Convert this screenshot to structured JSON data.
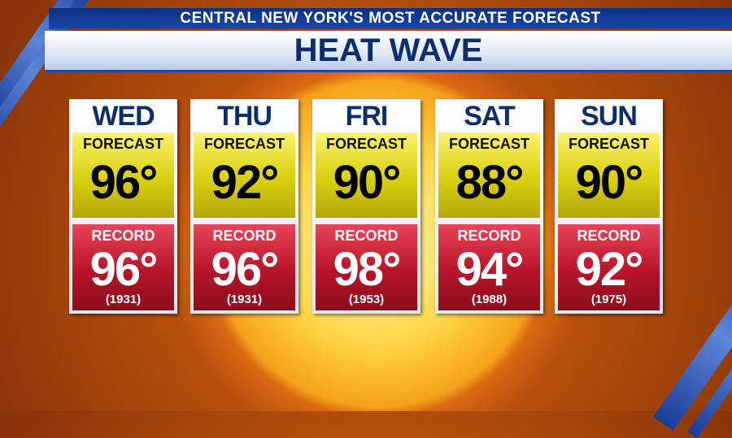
{
  "header": {
    "banner": "CENTRAL NEW YORK'S MOST ACCURATE FORECAST",
    "title": "HEAT WAVE"
  },
  "days": [
    {
      "day": "WED",
      "forecast_label": "FORECAST",
      "forecast": "96°",
      "record_label": "RECORD",
      "record": "96°",
      "year": "(1931)"
    },
    {
      "day": "THU",
      "forecast_label": "FORECAST",
      "forecast": "92°",
      "record_label": "RECORD",
      "record": "96°",
      "year": "(1931)"
    },
    {
      "day": "FRI",
      "forecast_label": "FORECAST",
      "forecast": "90°",
      "record_label": "RECORD",
      "record": "98°",
      "year": "(1953)"
    },
    {
      "day": "SAT",
      "forecast_label": "FORECAST",
      "forecast": "88°",
      "record_label": "RECORD",
      "record": "94°",
      "year": "(1988)"
    },
    {
      "day": "SUN",
      "forecast_label": "FORECAST",
      "forecast": "90°",
      "record_label": "RECORD",
      "record": "92°",
      "year": "(1975)"
    }
  ]
}
